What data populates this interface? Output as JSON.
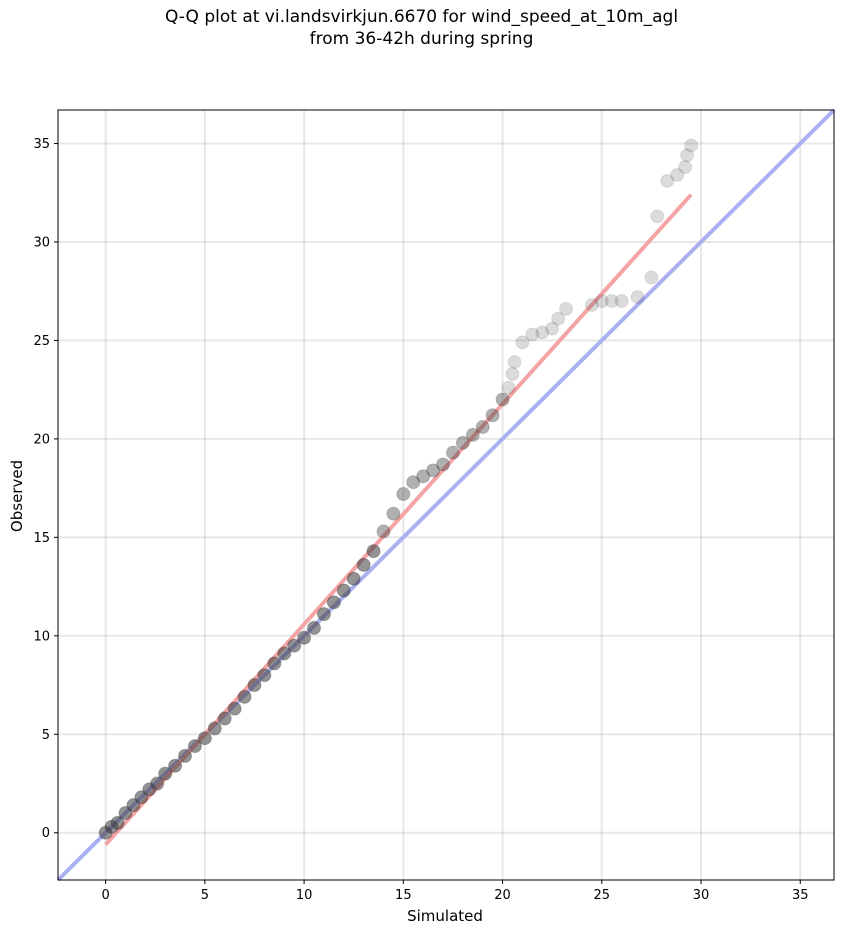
{
  "chart_data": {
    "type": "scatter",
    "title": "Q-Q plot at vi.landsvirkjun.6670 for wind_speed_at_10m_agl\nfrom 36-42h during spring",
    "xlabel": "Simulated",
    "ylabel": "Observed",
    "xlim": [
      -2.4,
      36.7
    ],
    "ylim": [
      -2.4,
      36.7
    ],
    "xticks": [
      0,
      5,
      10,
      15,
      20,
      25,
      30,
      35
    ],
    "yticks": [
      0,
      5,
      10,
      15,
      20,
      25,
      30,
      35
    ],
    "grid": true,
    "points": [
      [
        0.0,
        0.0
      ],
      [
        0.3,
        0.3
      ],
      [
        0.6,
        0.5
      ],
      [
        1.0,
        1.0
      ],
      [
        1.4,
        1.4
      ],
      [
        1.8,
        1.8
      ],
      [
        2.2,
        2.2
      ],
      [
        2.6,
        2.5
      ],
      [
        3.0,
        3.0
      ],
      [
        3.5,
        3.4
      ],
      [
        4.0,
        3.9
      ],
      [
        4.5,
        4.4
      ],
      [
        5.0,
        4.8
      ],
      [
        5.5,
        5.3
      ],
      [
        6.0,
        5.8
      ],
      [
        6.5,
        6.3
      ],
      [
        7.0,
        6.9
      ],
      [
        7.5,
        7.5
      ],
      [
        8.0,
        8.0
      ],
      [
        8.5,
        8.6
      ],
      [
        9.0,
        9.1
      ],
      [
        9.5,
        9.5
      ],
      [
        10.0,
        9.9
      ],
      [
        10.5,
        10.4
      ],
      [
        11.0,
        11.1
      ],
      [
        11.5,
        11.7
      ],
      [
        12.0,
        12.3
      ],
      [
        12.5,
        12.9
      ],
      [
        13.0,
        13.6
      ],
      [
        13.5,
        14.3
      ],
      [
        14.0,
        15.3
      ],
      [
        14.5,
        16.2
      ],
      [
        15.0,
        17.2
      ],
      [
        15.5,
        17.8
      ],
      [
        16.0,
        18.1
      ],
      [
        16.5,
        18.4
      ],
      [
        17.0,
        18.7
      ],
      [
        17.5,
        19.3
      ],
      [
        18.0,
        19.8
      ],
      [
        18.5,
        20.2
      ],
      [
        19.0,
        20.6
      ],
      [
        19.5,
        21.2
      ],
      [
        20.0,
        22.0
      ],
      [
        20.3,
        22.6
      ],
      [
        20.5,
        23.3
      ],
      [
        20.6,
        23.9
      ],
      [
        21.0,
        24.9
      ],
      [
        21.5,
        25.3
      ],
      [
        22.0,
        25.4
      ],
      [
        22.5,
        25.6
      ],
      [
        22.8,
        26.1
      ],
      [
        23.2,
        26.6
      ],
      [
        24.5,
        26.8
      ],
      [
        25.0,
        27.0
      ],
      [
        25.5,
        27.0
      ],
      [
        26.0,
        27.0
      ],
      [
        26.8,
        27.2
      ],
      [
        27.5,
        28.2
      ],
      [
        27.8,
        31.3
      ],
      [
        28.3,
        33.1
      ],
      [
        28.8,
        33.4
      ],
      [
        29.2,
        33.8
      ],
      [
        29.3,
        34.4
      ],
      [
        29.5,
        34.9
      ]
    ],
    "fit_line": {
      "x": [
        0.0,
        29.5
      ],
      "y": [
        -0.6,
        32.4
      ],
      "color": "#f4a4a4"
    },
    "identity_line": {
      "x": [
        -2.4,
        36.7
      ],
      "y": [
        -2.4,
        36.7
      ],
      "color": "#aab0f0"
    }
  }
}
